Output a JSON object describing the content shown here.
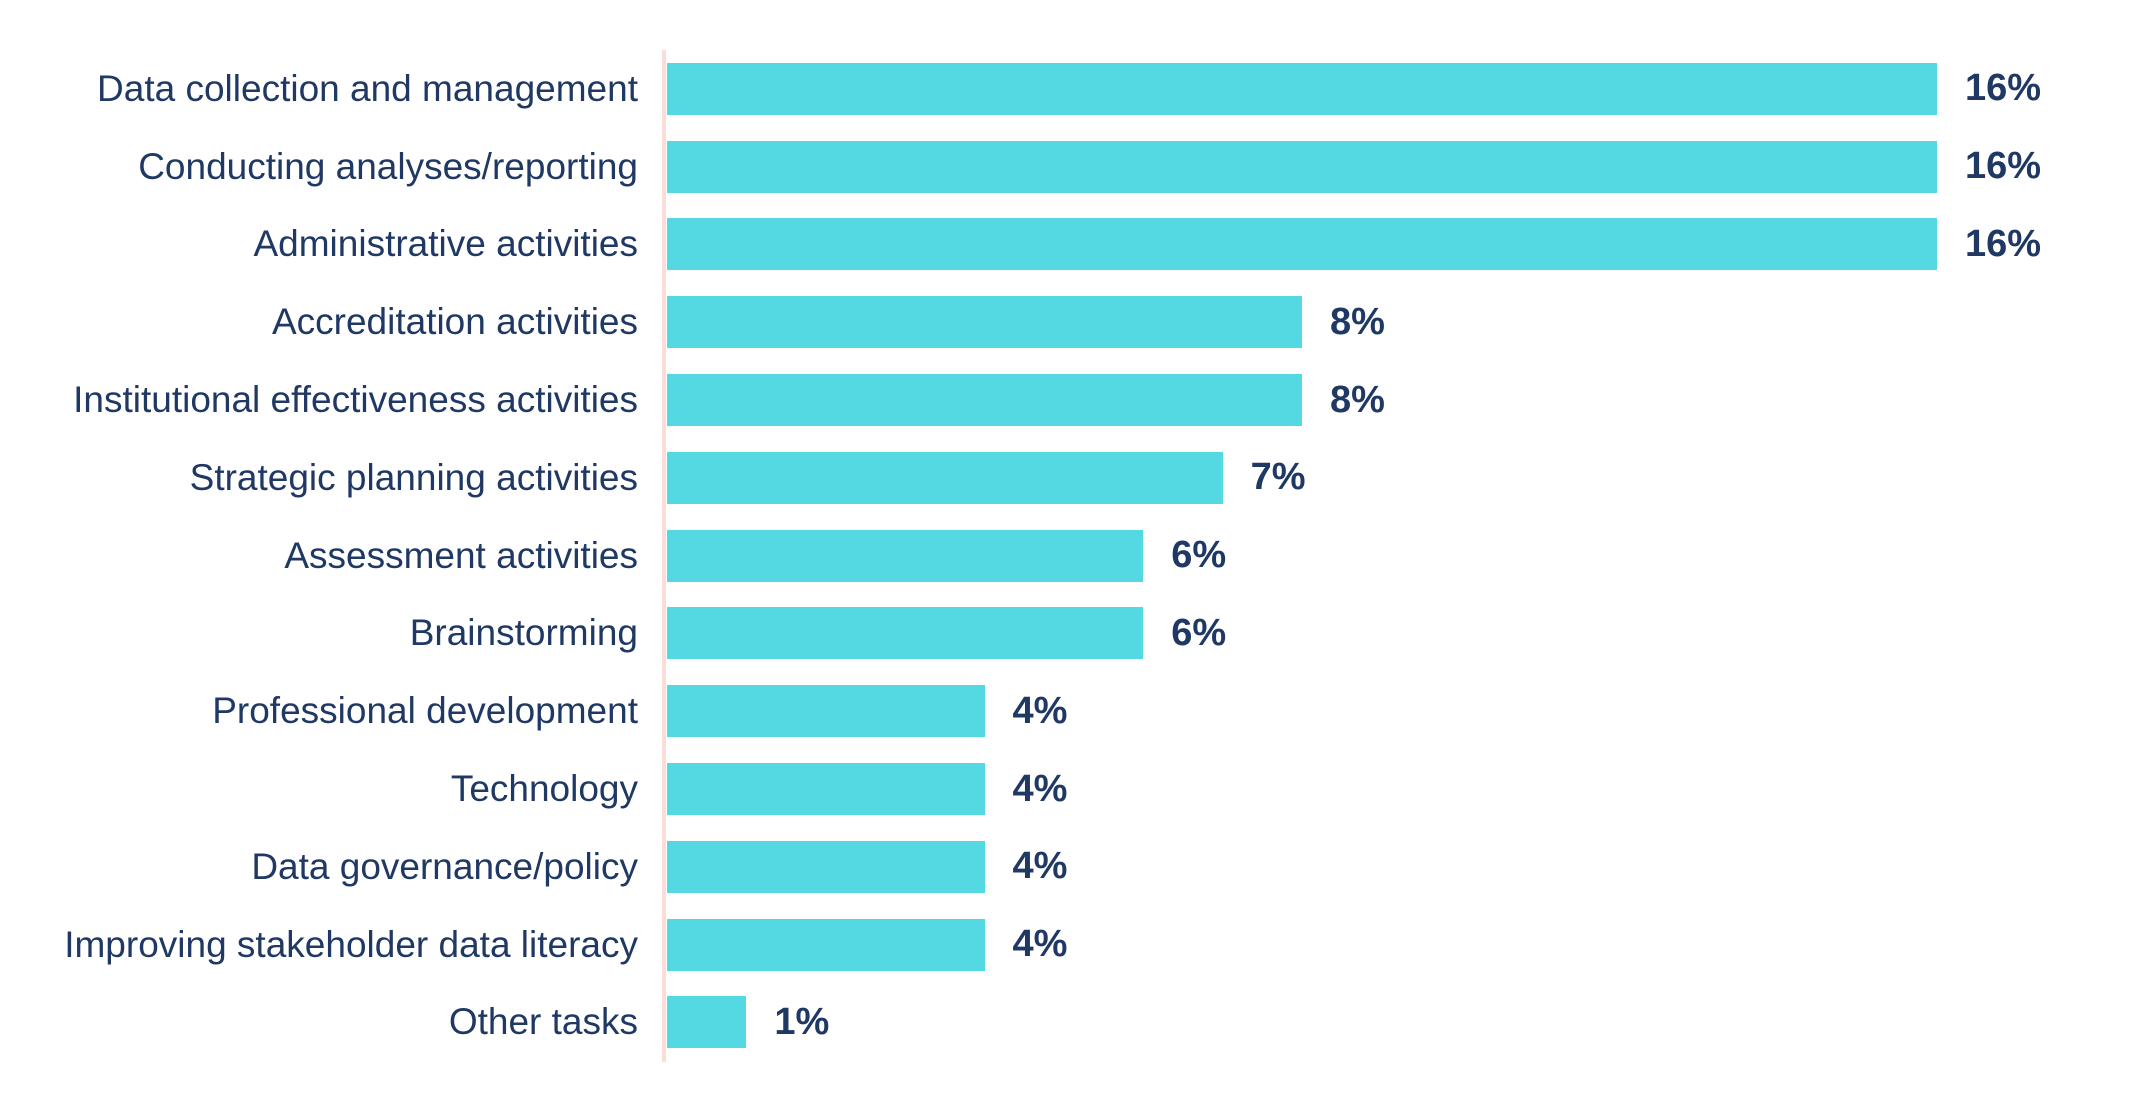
{
  "chart_data": {
    "type": "bar",
    "orientation": "horizontal",
    "title": "",
    "xlabel": "",
    "ylabel": "",
    "categories": [
      "Data collection and management",
      "Conducting analyses/reporting",
      "Administrative activities",
      "Accreditation activities",
      "Institutional effectiveness activities",
      "Strategic planning activities",
      "Assessment activities",
      "Brainstorming",
      "Professional development",
      "Technology",
      "Data governance/policy",
      "Improving stakeholder data literacy",
      "Other tasks"
    ],
    "values": [
      16,
      16,
      16,
      8,
      8,
      7,
      6,
      6,
      4,
      4,
      4,
      4,
      1
    ],
    "value_labels": [
      "16%",
      "16%",
      "16%",
      "8%",
      "8%",
      "7%",
      "6%",
      "6%",
      "4%",
      "4%",
      "4%",
      "4%",
      "1%"
    ],
    "xlim": [
      0,
      16
    ],
    "grid": false,
    "legend": false,
    "bar_color": "#54D8E1",
    "text_color": "#1F3864",
    "axis_line_color": "#F8DDD9"
  }
}
